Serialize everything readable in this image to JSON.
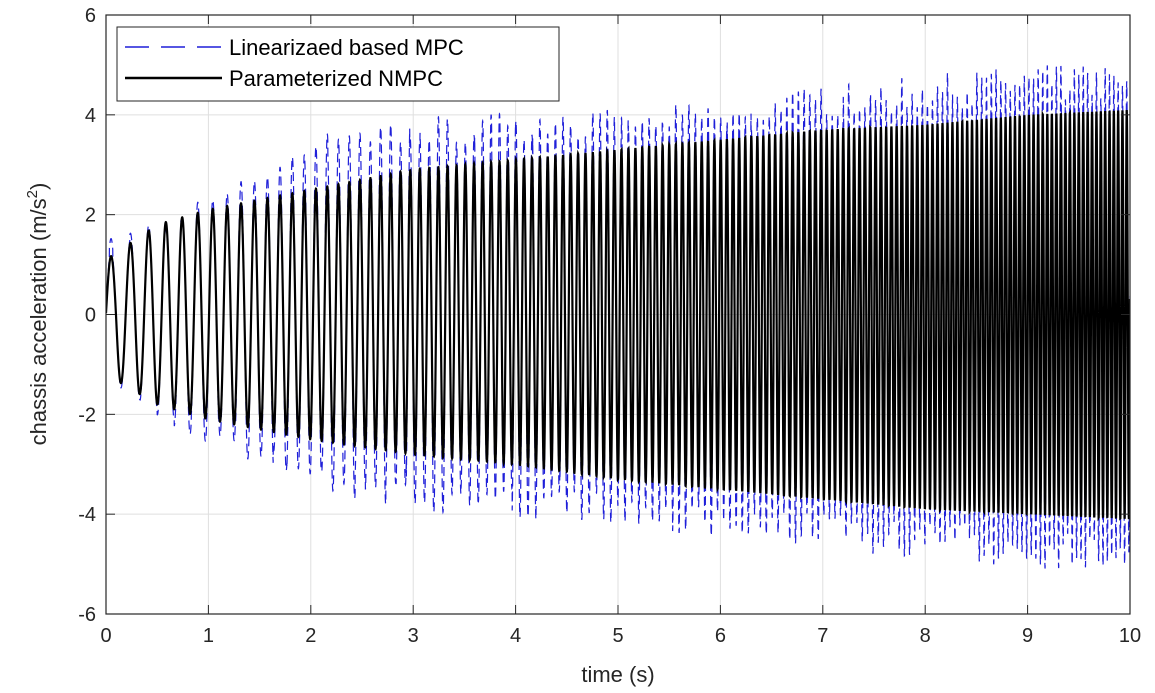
{
  "chart_data": {
    "type": "line",
    "title": "",
    "xlabel": "time (s)",
    "ylabel_main": "chassis acceleration (m/s",
    "ylabel_sup": "2",
    "ylabel_close": ")",
    "xlim": [
      0,
      10
    ],
    "ylim": [
      -6,
      6
    ],
    "xticks": [
      "0",
      "1",
      "2",
      "3",
      "4",
      "5",
      "6",
      "7",
      "8",
      "9",
      "10"
    ],
    "yticks": [
      "-6",
      "-4",
      "-2",
      "0",
      "2",
      "4",
      "6"
    ],
    "grid": true,
    "legend_position": "top-left",
    "series": [
      {
        "name": "Linearizaed based MPC",
        "style": "dashed",
        "color": "#1f1fd9",
        "oscillation_hz": [
          5,
          24
        ],
        "envelope_t": [
          0,
          0.5,
          1,
          2,
          3,
          4,
          5,
          6,
          7,
          8,
          9,
          10
        ],
        "envelope_upper": [
          1.5,
          1.9,
          2.5,
          3.6,
          4.0,
          4.1,
          4.1,
          4.3,
          4.6,
          4.8,
          5.0,
          5.0
        ],
        "envelope_lower": [
          -1.3,
          -2.1,
          -2.6,
          -3.5,
          -4.0,
          -4.1,
          -4.2,
          -4.5,
          -4.7,
          -4.9,
          -5.1,
          -5.1
        ]
      },
      {
        "name": "Parameterized NMPC",
        "style": "solid",
        "color": "#000000",
        "oscillation_hz": [
          5,
          24
        ],
        "envelope_t": [
          0,
          0.5,
          1,
          2,
          3,
          4,
          5,
          6,
          7,
          8,
          9,
          10
        ],
        "envelope_upper": [
          1.1,
          1.8,
          2.1,
          2.5,
          2.9,
          3.1,
          3.3,
          3.5,
          3.7,
          3.8,
          4.0,
          4.1
        ],
        "envelope_lower": [
          -1.2,
          -1.8,
          -2.1,
          -2.5,
          -2.8,
          -3.0,
          -3.3,
          -3.5,
          -3.7,
          -3.9,
          -4.0,
          -4.1
        ]
      }
    ]
  },
  "colors": {
    "axis": "#262626",
    "grid": "#dfdfdf",
    "background": "#ffffff"
  }
}
